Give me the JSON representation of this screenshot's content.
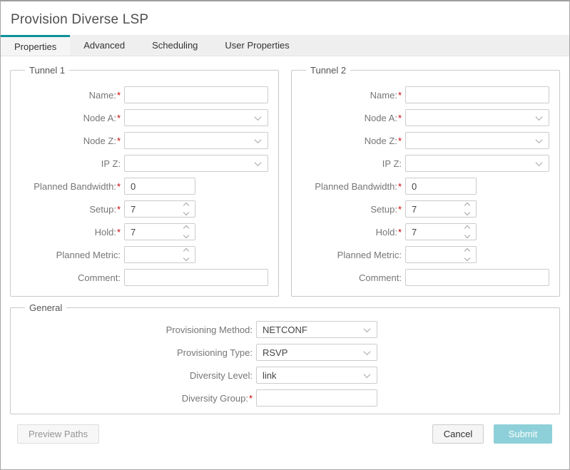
{
  "window": {
    "title": "Provision Diverse LSP"
  },
  "tabs": [
    {
      "label": "Properties",
      "active": true
    },
    {
      "label": "Advanced",
      "active": false
    },
    {
      "label": "Scheduling",
      "active": false
    },
    {
      "label": "User Properties",
      "active": false
    }
  ],
  "ui": {
    "required_marker": "*"
  },
  "tunnels": [
    {
      "legend": "Tunnel 1",
      "fields": {
        "name": {
          "label": "Name:",
          "required": true,
          "value": ""
        },
        "node_a": {
          "label": "Node A:",
          "required": true,
          "value": ""
        },
        "node_z": {
          "label": "Node Z:",
          "required": true,
          "value": ""
        },
        "ip_z": {
          "label": "IP Z:",
          "required": false,
          "value": ""
        },
        "planned_bandwidth": {
          "label": "Planned Bandwidth:",
          "required": true,
          "value": "0"
        },
        "setup": {
          "label": "Setup:",
          "required": true,
          "value": "7"
        },
        "hold": {
          "label": "Hold:",
          "required": true,
          "value": "7"
        },
        "planned_metric": {
          "label": "Planned Metric:",
          "required": false,
          "value": ""
        },
        "comment": {
          "label": "Comment:",
          "required": false,
          "value": ""
        }
      }
    },
    {
      "legend": "Tunnel 2",
      "fields": {
        "name": {
          "label": "Name:",
          "required": true,
          "value": ""
        },
        "node_a": {
          "label": "Node A:",
          "required": true,
          "value": ""
        },
        "node_z": {
          "label": "Node Z:",
          "required": true,
          "value": ""
        },
        "ip_z": {
          "label": "IP Z:",
          "required": false,
          "value": ""
        },
        "planned_bandwidth": {
          "label": "Planned Bandwidth:",
          "required": true,
          "value": "0"
        },
        "setup": {
          "label": "Setup:",
          "required": true,
          "value": "7"
        },
        "hold": {
          "label": "Hold:",
          "required": true,
          "value": "7"
        },
        "planned_metric": {
          "label": "Planned Metric:",
          "required": false,
          "value": ""
        },
        "comment": {
          "label": "Comment:",
          "required": false,
          "value": ""
        }
      }
    }
  ],
  "general": {
    "legend": "General",
    "fields": {
      "provisioning_method": {
        "label": "Provisioning Method:",
        "required": false,
        "value": "NETCONF"
      },
      "provisioning_type": {
        "label": "Provisioning Type:",
        "required": false,
        "value": "RSVP"
      },
      "diversity_level": {
        "label": "Diversity Level:",
        "required": false,
        "value": "link"
      },
      "diversity_group": {
        "label": "Diversity Group:",
        "required": true,
        "value": ""
      }
    }
  },
  "footer": {
    "preview_paths_label": "Preview Paths",
    "cancel_label": "Cancel",
    "submit_label": "Submit"
  },
  "colors": {
    "accent_teal": "#0d919b",
    "submit_bg": "#8ed0d9",
    "required_red": "#cc0000",
    "tab_strip_bg": "#efefef"
  }
}
